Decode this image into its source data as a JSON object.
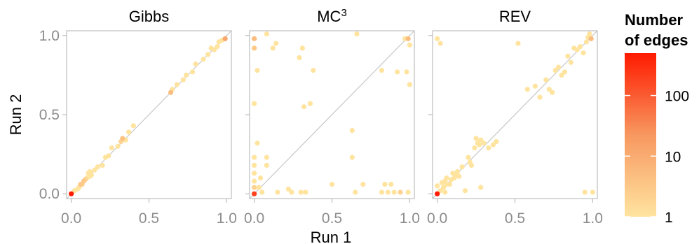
{
  "chart_data": [
    {
      "type": "scatter",
      "title": "Gibbs",
      "xlabel": "Run 1",
      "ylabel": "Run 2",
      "xlim": [
        -0.03,
        1.03
      ],
      "ylim": [
        -0.03,
        1.03
      ],
      "xticks": [
        "0.0",
        "0.5",
        "1.0"
      ],
      "yticks": [
        "0.0",
        "0.5",
        "1.0"
      ],
      "reference_line": "y = x",
      "points": [
        [
          0.0,
          0.0,
          500
        ],
        [
          0.02,
          0.02,
          1
        ],
        [
          0.04,
          0.03,
          1
        ],
        [
          0.05,
          0.04,
          1
        ],
        [
          0.06,
          0.06,
          3
        ],
        [
          0.07,
          0.06,
          2
        ],
        [
          0.08,
          0.08,
          3
        ],
        [
          0.09,
          0.09,
          2
        ],
        [
          0.1,
          0.1,
          1
        ],
        [
          0.11,
          0.13,
          1
        ],
        [
          0.12,
          0.11,
          1
        ],
        [
          0.12,
          0.14,
          1
        ],
        [
          0.13,
          0.12,
          1
        ],
        [
          0.15,
          0.15,
          1
        ],
        [
          0.17,
          0.17,
          1
        ],
        [
          0.2,
          0.18,
          1
        ],
        [
          0.22,
          0.23,
          1
        ],
        [
          0.24,
          0.24,
          1
        ],
        [
          0.26,
          0.29,
          1
        ],
        [
          0.3,
          0.3,
          1
        ],
        [
          0.32,
          0.33,
          2
        ],
        [
          0.33,
          0.35,
          4
        ],
        [
          0.35,
          0.34,
          1
        ],
        [
          0.37,
          0.39,
          1
        ],
        [
          0.4,
          0.43,
          1
        ],
        [
          0.64,
          0.64,
          5
        ],
        [
          0.65,
          0.66,
          1
        ],
        [
          0.68,
          0.69,
          1
        ],
        [
          0.72,
          0.72,
          1
        ],
        [
          0.74,
          0.75,
          1
        ],
        [
          0.78,
          0.77,
          1
        ],
        [
          0.8,
          0.82,
          1
        ],
        [
          0.85,
          0.85,
          1
        ],
        [
          0.88,
          0.88,
          1
        ],
        [
          0.9,
          0.92,
          1
        ],
        [
          0.92,
          0.91,
          1
        ],
        [
          0.94,
          0.93,
          1
        ],
        [
          0.95,
          0.96,
          1
        ],
        [
          0.97,
          0.97,
          1
        ],
        [
          0.99,
          0.98,
          12
        ]
      ]
    },
    {
      "type": "scatter",
      "title": "MC",
      "title_superscript": "3",
      "xlabel": "Run 1",
      "ylabel": "Run 2",
      "xlim": [
        -0.03,
        1.03
      ],
      "ylim": [
        -0.03,
        1.03
      ],
      "xticks": [
        "0.0",
        "0.5",
        "1.0"
      ],
      "yticks": [
        "0.0",
        "0.5",
        "1.0"
      ],
      "reference_line": "y = x",
      "points": [
        [
          0.0,
          0.0,
          200
        ],
        [
          0.0,
          0.04,
          2
        ],
        [
          0.0,
          0.08,
          1
        ],
        [
          0.0,
          0.13,
          1
        ],
        [
          0.0,
          0.18,
          1
        ],
        [
          0.0,
          0.23,
          1
        ],
        [
          0.0,
          0.57,
          1
        ],
        [
          0.0,
          0.92,
          3
        ],
        [
          0.0,
          0.98,
          5
        ],
        [
          0.02,
          0.78,
          1
        ],
        [
          0.02,
          0.32,
          1
        ],
        [
          0.03,
          0.04,
          1
        ],
        [
          0.04,
          0.1,
          1
        ],
        [
          0.05,
          0.01,
          1
        ],
        [
          0.08,
          0.18,
          1
        ],
        [
          0.08,
          0.23,
          1
        ],
        [
          0.08,
          1.01,
          1
        ],
        [
          0.12,
          0.92,
          1
        ],
        [
          0.14,
          0.95,
          1
        ],
        [
          0.15,
          0.01,
          1
        ],
        [
          0.22,
          0.03,
          1
        ],
        [
          0.24,
          0.01,
          1
        ],
        [
          0.29,
          0.86,
          1
        ],
        [
          0.31,
          0.92,
          1
        ],
        [
          0.3,
          0.01,
          1
        ],
        [
          0.33,
          0.01,
          1
        ],
        [
          0.32,
          0.55,
          1
        ],
        [
          0.36,
          0.57,
          1
        ],
        [
          0.38,
          0.78,
          1
        ],
        [
          0.5,
          0.06,
          1
        ],
        [
          0.63,
          0.4,
          1
        ],
        [
          0.63,
          0.23,
          1
        ],
        [
          0.65,
          0.01,
          1
        ],
        [
          0.66,
          1.01,
          1
        ],
        [
          0.7,
          0.06,
          1
        ],
        [
          0.82,
          0.78,
          1
        ],
        [
          0.82,
          0.01,
          1
        ],
        [
          0.84,
          0.06,
          1
        ],
        [
          0.86,
          0.01,
          1
        ],
        [
          0.88,
          0.06,
          1
        ],
        [
          0.9,
          0.01,
          1
        ],
        [
          0.92,
          0.77,
          1
        ],
        [
          0.94,
          0.01,
          2
        ],
        [
          0.97,
          0.98,
          1
        ],
        [
          0.98,
          0.77,
          1
        ],
        [
          0.99,
          0.98,
          5
        ],
        [
          0.99,
          0.01,
          1
        ],
        [
          1.0,
          0.69,
          1
        ],
        [
          1.0,
          0.94,
          1
        ]
      ]
    },
    {
      "type": "scatter",
      "title": "REV",
      "xlabel": "Run 1",
      "ylabel": "Run 2",
      "xlim": [
        -0.03,
        1.03
      ],
      "ylim": [
        -0.03,
        1.03
      ],
      "xticks": [
        "0.0",
        "0.5",
        "1.0"
      ],
      "yticks": [
        "0.0",
        "0.5",
        "1.0"
      ],
      "reference_line": "y = x",
      "points": [
        [
          0.0,
          0.0,
          500
        ],
        [
          0.0,
          0.05,
          1
        ],
        [
          0.0,
          0.98,
          1
        ],
        [
          0.02,
          0.95,
          1
        ],
        [
          0.02,
          0.02,
          1
        ],
        [
          0.03,
          0.07,
          1
        ],
        [
          0.04,
          0.04,
          1
        ],
        [
          0.05,
          0.01,
          1
        ],
        [
          0.05,
          0.08,
          1
        ],
        [
          0.06,
          0.1,
          1
        ],
        [
          0.06,
          0.06,
          1
        ],
        [
          0.08,
          0.06,
          1
        ],
        [
          0.09,
          0.09,
          1
        ],
        [
          0.1,
          0.13,
          1
        ],
        [
          0.11,
          0.1,
          1
        ],
        [
          0.12,
          0.12,
          1
        ],
        [
          0.13,
          0.14,
          1
        ],
        [
          0.14,
          0.11,
          1
        ],
        [
          0.16,
          0.17,
          1
        ],
        [
          0.18,
          0.02,
          1
        ],
        [
          0.2,
          0.23,
          1
        ],
        [
          0.21,
          0.2,
          1
        ],
        [
          0.22,
          0.18,
          1
        ],
        [
          0.24,
          0.29,
          1
        ],
        [
          0.25,
          0.35,
          1
        ],
        [
          0.26,
          0.32,
          1
        ],
        [
          0.27,
          0.31,
          1
        ],
        [
          0.28,
          0.34,
          1
        ],
        [
          0.28,
          0.04,
          1
        ],
        [
          0.3,
          0.32,
          1
        ],
        [
          0.33,
          0.29,
          1
        ],
        [
          0.36,
          0.31,
          1
        ],
        [
          0.38,
          0.33,
          1
        ],
        [
          0.52,
          0.95,
          1
        ],
        [
          0.58,
          0.66,
          1
        ],
        [
          0.63,
          0.68,
          1
        ],
        [
          0.66,
          0.61,
          1
        ],
        [
          0.7,
          0.72,
          1
        ],
        [
          0.72,
          0.66,
          1
        ],
        [
          0.74,
          0.64,
          1
        ],
        [
          0.76,
          0.78,
          1
        ],
        [
          0.78,
          0.8,
          1
        ],
        [
          0.8,
          0.75,
          1
        ],
        [
          0.82,
          0.77,
          1
        ],
        [
          0.84,
          0.87,
          1
        ],
        [
          0.86,
          0.83,
          1
        ],
        [
          0.88,
          0.92,
          1
        ],
        [
          0.9,
          0.91,
          1
        ],
        [
          0.92,
          0.93,
          1
        ],
        [
          0.94,
          0.89,
          1
        ],
        [
          0.96,
          0.96,
          1
        ],
        [
          0.97,
          0.99,
          1
        ],
        [
          0.98,
          1.01,
          1
        ],
        [
          0.99,
          0.98,
          5
        ],
        [
          0.95,
          0.01,
          1
        ],
        [
          1.0,
          0.01,
          1
        ]
      ]
    }
  ],
  "legend": {
    "title_line1": "Number",
    "title_line2": "of edges",
    "scale": "log",
    "domain": [
      1,
      500
    ],
    "ticks": [
      {
        "value": 1,
        "label": "1"
      },
      {
        "value": 10,
        "label": "10"
      },
      {
        "value": 100,
        "label": "100"
      }
    ],
    "color_low": "#ffe4a0",
    "color_mid": "#f79860",
    "color_high": "#ff1a00"
  },
  "colors": {
    "reference_line": "#c8c8c8",
    "panel_border": "#bdbdbd",
    "tick_text": "#8c8c8c"
  }
}
